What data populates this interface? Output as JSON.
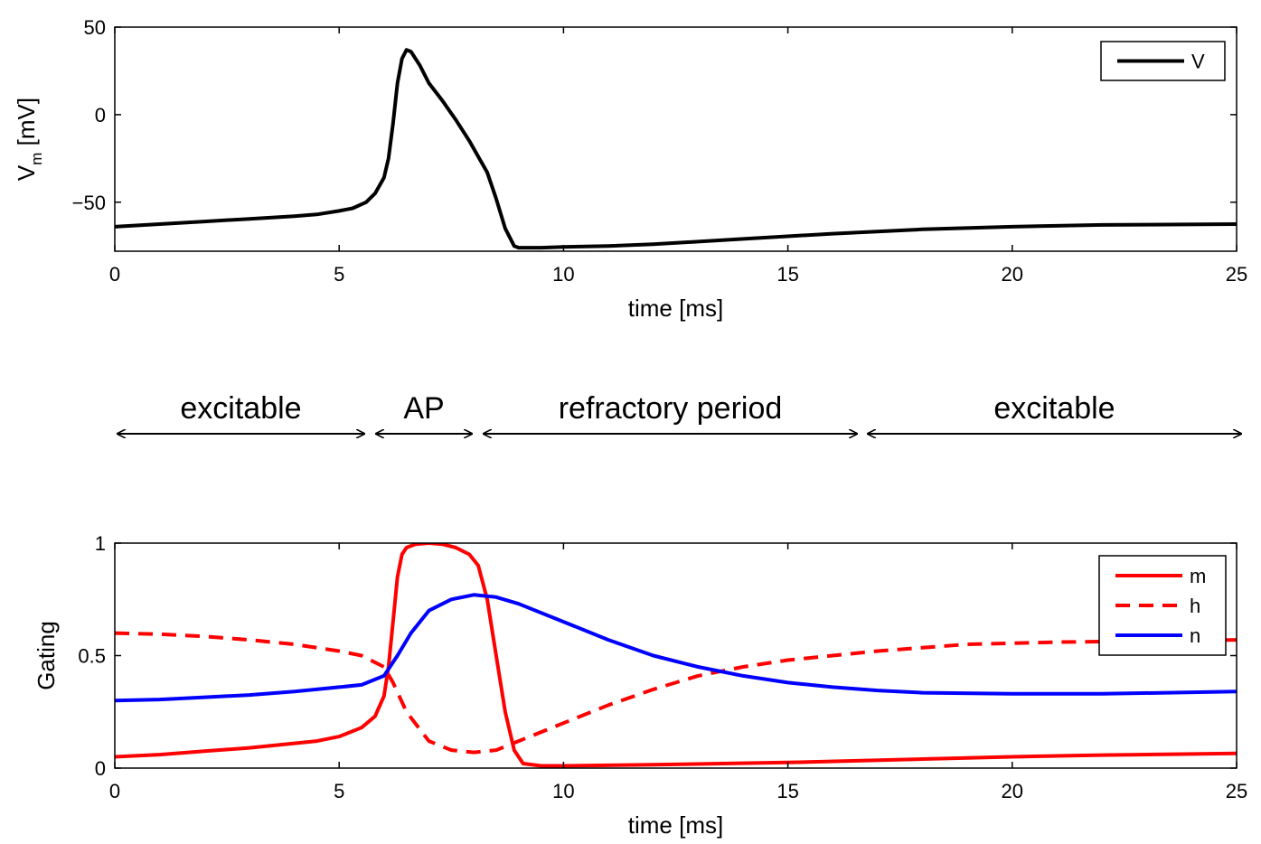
{
  "chart_data": [
    {
      "type": "line",
      "xlabel": "time [ms]",
      "ylabel_main": "V",
      "ylabel_sub": "m",
      "ylabel_unit": " [mV]",
      "xlim": [
        0,
        25
      ],
      "ylim": [
        -78,
        50
      ],
      "xticks": [
        0,
        5,
        10,
        15,
        20,
        25
      ],
      "xtick_labels": [
        "0",
        "5",
        "10",
        "15",
        "20",
        "25"
      ],
      "yticks": [
        -50,
        0,
        50
      ],
      "ytick_labels": [
        "−50",
        "0",
        "50"
      ],
      "legend_position": "top-right",
      "series": [
        {
          "name": "V",
          "color": "#000000",
          "dash": "solid",
          "x": [
            0,
            1,
            2,
            3,
            4,
            4.5,
            5,
            5.3,
            5.6,
            5.8,
            6.0,
            6.1,
            6.2,
            6.3,
            6.4,
            6.5,
            6.6,
            6.8,
            7.0,
            7.3,
            7.6,
            7.9,
            8.1,
            8.3,
            8.5,
            8.7,
            8.9,
            9.0,
            9.5,
            10,
            11,
            12,
            14,
            16,
            18,
            20,
            22,
            25
          ],
          "y": [
            -64,
            -62.5,
            -61,
            -59.5,
            -58,
            -57,
            -55,
            -53.5,
            -50,
            -45,
            -36,
            -25,
            -5,
            18,
            32,
            37,
            36,
            28,
            18,
            8,
            -3,
            -15,
            -24,
            -33,
            -48,
            -65,
            -75,
            -76,
            -76,
            -75.5,
            -75,
            -74,
            -71,
            -68,
            -65.5,
            -64,
            -63,
            -62.5
          ]
        }
      ]
    },
    {
      "type": "line",
      "xlabel": "time [ms]",
      "ylabel": "Gating",
      "xlim": [
        0,
        25
      ],
      "ylim": [
        0,
        1
      ],
      "xticks": [
        0,
        5,
        10,
        15,
        20,
        25
      ],
      "xtick_labels": [
        "0",
        "5",
        "10",
        "15",
        "20",
        "25"
      ],
      "yticks": [
        0,
        0.5,
        1
      ],
      "ytick_labels": [
        "0",
        "0.5",
        "1"
      ],
      "legend_position": "top-right",
      "series": [
        {
          "name": "m",
          "color": "#ff0000",
          "dash": "solid",
          "x": [
            0,
            1,
            2,
            3,
            4,
            4.5,
            5,
            5.5,
            5.8,
            6.0,
            6.1,
            6.2,
            6.3,
            6.4,
            6.5,
            6.7,
            7.0,
            7.3,
            7.6,
            7.9,
            8.1,
            8.3,
            8.5,
            8.7,
            8.9,
            9.1,
            9.5,
            10,
            12,
            15,
            18,
            20,
            22,
            25
          ],
          "y": [
            0.05,
            0.06,
            0.075,
            0.09,
            0.11,
            0.12,
            0.14,
            0.18,
            0.23,
            0.32,
            0.45,
            0.65,
            0.85,
            0.95,
            0.98,
            0.995,
            1.0,
            0.995,
            0.98,
            0.95,
            0.9,
            0.75,
            0.5,
            0.25,
            0.08,
            0.02,
            0.01,
            0.01,
            0.015,
            0.025,
            0.04,
            0.05,
            0.058,
            0.065
          ]
        },
        {
          "name": "h",
          "color": "#ff0000",
          "dash": "dashed",
          "x": [
            0,
            1,
            2,
            3,
            4,
            5,
            5.5,
            6.0,
            6.2,
            6.5,
            7.0,
            7.5,
            8.0,
            8.5,
            9.0,
            10,
            11,
            12,
            13,
            14,
            15,
            17,
            19,
            21,
            23,
            25
          ],
          "y": [
            0.6,
            0.595,
            0.585,
            0.57,
            0.55,
            0.52,
            0.5,
            0.45,
            0.38,
            0.25,
            0.12,
            0.08,
            0.07,
            0.08,
            0.12,
            0.2,
            0.28,
            0.35,
            0.41,
            0.45,
            0.48,
            0.52,
            0.55,
            0.56,
            0.565,
            0.57
          ]
        },
        {
          "name": "n",
          "color": "#0000ff",
          "dash": "solid",
          "x": [
            0,
            1,
            2,
            3,
            4,
            5,
            5.5,
            6.0,
            6.3,
            6.6,
            7.0,
            7.5,
            8.0,
            8.5,
            9.0,
            10,
            11,
            12,
            13,
            14,
            15,
            16,
            17,
            18,
            20,
            22,
            25
          ],
          "y": [
            0.3,
            0.305,
            0.315,
            0.325,
            0.34,
            0.36,
            0.37,
            0.41,
            0.5,
            0.6,
            0.7,
            0.75,
            0.77,
            0.76,
            0.73,
            0.65,
            0.57,
            0.5,
            0.45,
            0.41,
            0.38,
            0.36,
            0.345,
            0.335,
            0.33,
            0.33,
            0.34
          ]
        }
      ]
    }
  ],
  "phases": {
    "labels": [
      "excitable",
      "AP",
      "refractory period",
      "excitable"
    ]
  }
}
